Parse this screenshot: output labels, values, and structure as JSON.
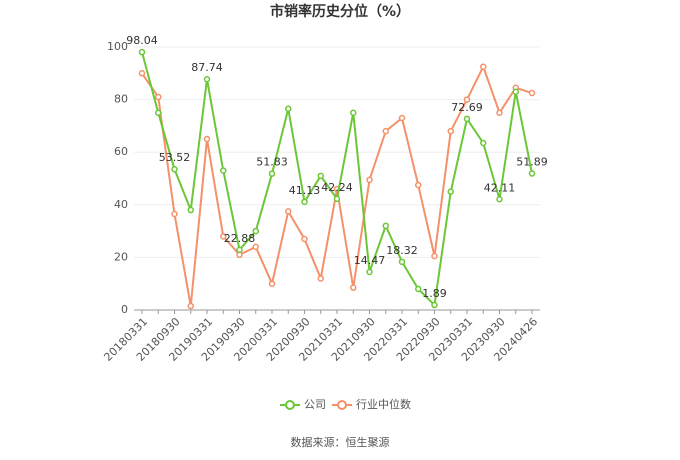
{
  "chart_data": {
    "type": "line",
    "title": "市销率历史分位（%）",
    "categories": [
      "20180331",
      null,
      "20180930",
      null,
      "20190331",
      null,
      "20190930",
      null,
      "20200331",
      null,
      "20200930",
      null,
      "20210331",
      null,
      "20210930",
      null,
      "20220331",
      null,
      "20220930",
      null,
      "20230331",
      null,
      "20230930",
      null,
      "20240426"
    ],
    "series": [
      {
        "name": "公司",
        "color": "#6ac736",
        "values": [
          98.04,
          75,
          53.52,
          38,
          87.74,
          53,
          22.88,
          30,
          51.83,
          76.5,
          41.13,
          51,
          42.24,
          75,
          14.47,
          32,
          18.32,
          8,
          1.89,
          45,
          72.69,
          63.5,
          42.11,
          83,
          51.89
        ],
        "value_labels": [
          "98.04",
          null,
          "53.52",
          null,
          "87.74",
          null,
          "22.88",
          null,
          "51.83",
          null,
          "41.13",
          null,
          "42.24",
          null,
          "14.47",
          null,
          "18.32",
          null,
          "1.89",
          null,
          "72.69",
          null,
          "42.11",
          null,
          "51.89"
        ]
      },
      {
        "name": "行业中位数",
        "color": "#f4906a",
        "values": [
          90,
          81,
          36.5,
          1.5,
          65,
          28,
          21,
          24,
          10,
          37.5,
          27,
          12,
          46,
          8.5,
          49.5,
          68,
          73,
          47.5,
          20.5,
          68,
          80,
          92.5,
          75,
          84.5,
          82.5
        ]
      }
    ],
    "ylim": [
      0,
      100
    ],
    "yticks": [
      0,
      20,
      40,
      60,
      80,
      100
    ],
    "grid": true,
    "legend": "bottom",
    "source": "数据来源：恒生聚源"
  }
}
